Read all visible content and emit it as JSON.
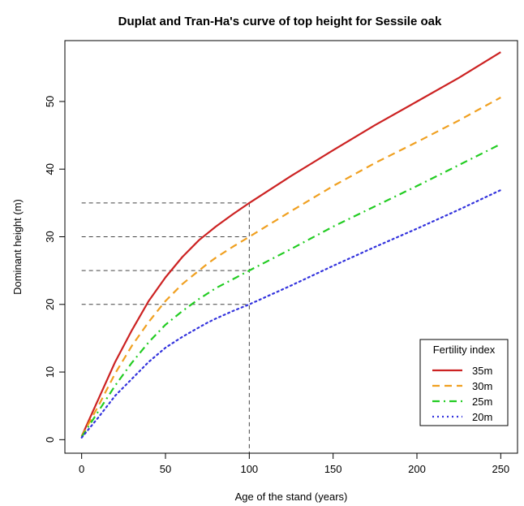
{
  "chart_data": {
    "type": "line",
    "title": "Duplat and Tran-Ha's curve of top height for Sessile oak",
    "xlabel": "Age of the stand (years)",
    "ylabel": "Dominant height (m)",
    "xlim": [
      -10,
      260
    ],
    "ylim": [
      -2,
      59
    ],
    "xticks": [
      0,
      50,
      100,
      150,
      200,
      250
    ],
    "yticks": [
      0,
      10,
      20,
      30,
      40,
      50
    ],
    "grid": false,
    "legend": {
      "title": "Fertility index",
      "position": "bottom-right"
    },
    "x": [
      0,
      10,
      20,
      30,
      40,
      50,
      60,
      70,
      75,
      80,
      90,
      100,
      125,
      150,
      175,
      200,
      225,
      250
    ],
    "series": [
      {
        "name": "35m",
        "color": "#cc2222",
        "dash": "solid",
        "values": [
          0.5,
          6.0,
          11.5,
          16.2,
          20.5,
          24.0,
          27.0,
          29.5,
          30.5,
          31.5,
          33.3,
          35.0,
          39.0,
          42.8,
          46.5,
          50.0,
          53.5,
          57.3
        ]
      },
      {
        "name": "30m",
        "color": "#f0a020",
        "dash": "dashed",
        "values": [
          0.5,
          5.0,
          9.8,
          13.9,
          17.4,
          20.5,
          23.0,
          25.0,
          26.0,
          26.9,
          28.5,
          30.0,
          33.8,
          37.5,
          40.9,
          44.0,
          47.2,
          50.6
        ]
      },
      {
        "name": "25m",
        "color": "#22cc22",
        "dash": "dashdot",
        "values": [
          0.4,
          4.2,
          8.0,
          11.4,
          14.4,
          17.0,
          19.0,
          20.8,
          21.6,
          22.4,
          23.7,
          25.0,
          28.2,
          31.5,
          34.5,
          37.5,
          40.6,
          43.7
        ]
      },
      {
        "name": "20m",
        "color": "#3333dd",
        "dash": "dotted",
        "values": [
          0.3,
          3.3,
          6.5,
          9.0,
          11.5,
          13.6,
          15.2,
          16.6,
          17.3,
          17.9,
          19.0,
          20.0,
          22.8,
          25.7,
          28.5,
          31.2,
          34.0,
          36.9
        ]
      }
    ],
    "reference_lines": {
      "vertical_x": 100,
      "horizontal_y": [
        35,
        30,
        25,
        20
      ]
    }
  }
}
